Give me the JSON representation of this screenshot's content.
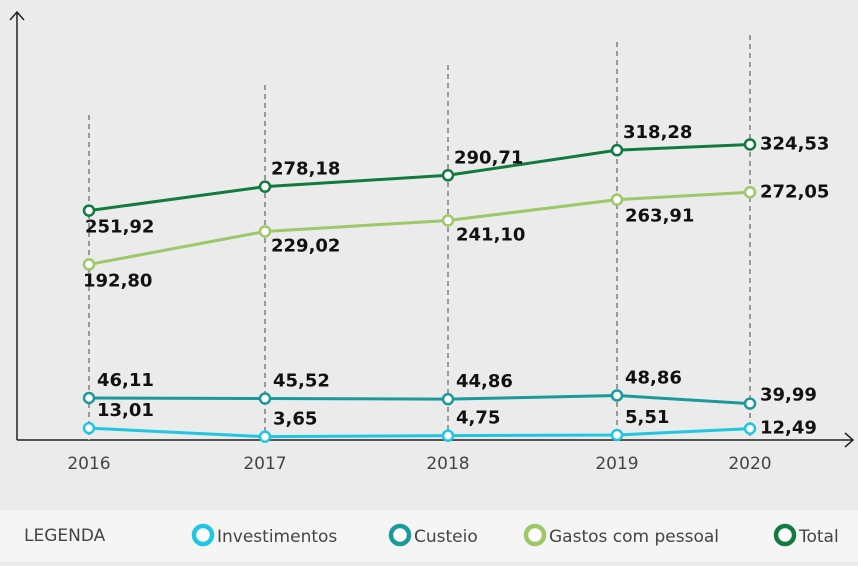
{
  "chart_data": {
    "type": "line",
    "categories": [
      "2016",
      "2017",
      "2018",
      "2019",
      "2020"
    ],
    "series": [
      {
        "name": "Investimentos",
        "color": "#1fc7e0",
        "values": [
          13.01,
          3.65,
          4.75,
          5.51,
          12.49
        ],
        "value_labels": [
          "13,01",
          "3,65",
          "4,75",
          "5,51",
          "12,49"
        ]
      },
      {
        "name": "Custeio",
        "color": "#1a9a9a",
        "values": [
          46.11,
          45.52,
          44.86,
          48.86,
          39.99
        ],
        "value_labels": [
          "46,11",
          "45,52",
          "44,86",
          "48,86",
          "39,99"
        ]
      },
      {
        "name": "Gastos com pessoal",
        "color": "#9dc86a",
        "values": [
          192.8,
          229.02,
          241.1,
          263.91,
          272.05
        ],
        "value_labels": [
          "192,80",
          "229,02",
          "241,10",
          "263,91",
          "272,05"
        ]
      },
      {
        "name": "Total",
        "color": "#117a3e",
        "values": [
          251.92,
          278.18,
          290.71,
          318.28,
          324.53
        ],
        "value_labels": [
          "251,92",
          "278,18",
          "290,71",
          "318,28",
          "324,53"
        ]
      }
    ],
    "ylim": [
      0,
      470
    ],
    "legend_title": "LEGENDA"
  }
}
